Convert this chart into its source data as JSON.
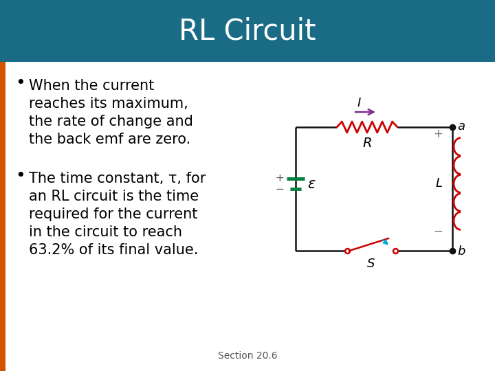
{
  "title": "RL Circuit",
  "title_bg_color": "#1a6b85",
  "title_text_color": "#ffffff",
  "slide_bg_color": "#ffffff",
  "left_bar_color": "#d35400",
  "bullet1_line1": "When the current",
  "bullet1_line2": "reaches its maximum,",
  "bullet1_line3": "the rate of change and",
  "bullet1_line4": "the back emf are zero.",
  "bullet2_line1": "The time constant, τ, for",
  "bullet2_line2": "an RL circuit is the time",
  "bullet2_line3": "required for the current",
  "bullet2_line4": "in the circuit to reach",
  "bullet2_line5": "63.2% of its final value.",
  "footer": "Section 20.6",
  "text_color": "#000000",
  "circuit_wire_color": "#111111",
  "resistor_color": "#cc0000",
  "inductor_color": "#cc0000",
  "battery_color": "#008040",
  "arrow_color": "#7b2d8b",
  "switch_color": "#cc0000",
  "switch_arrow_color": "#00aadd",
  "dot_color": "#111111"
}
